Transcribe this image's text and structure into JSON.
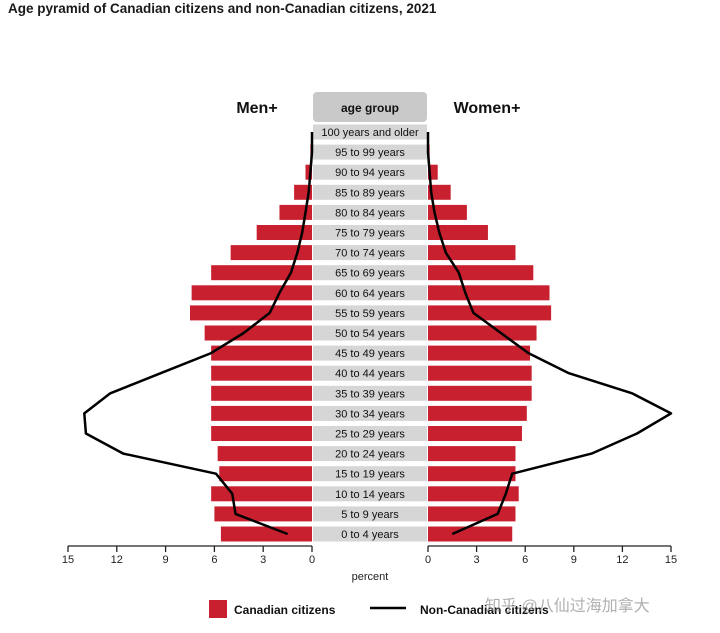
{
  "title": "Age pyramid of Canadian citizens and non-Canadian citizens, 2021",
  "watermark": "知乎 @八仙过海加拿大",
  "chart_data": {
    "type": "bar",
    "orientation": "horizontal-pyramid",
    "left_label": "Men+",
    "right_label": "Women+",
    "center_header": "age group",
    "xlabel": "percent",
    "xlim": [
      0,
      15
    ],
    "ticks": [
      "15",
      "12",
      "9",
      "6",
      "3",
      "0"
    ],
    "categories": [
      "0 to 4 years",
      "5 to 9 years",
      "10 to 14 years",
      "15 to 19 years",
      "20 to 24 years",
      "25 to 29 years",
      "30 to 34 years",
      "35 to 39 years",
      "40 to 44 years",
      "45 to 49 years",
      "50 to 54 years",
      "55 to 59 years",
      "60 to 64 years",
      "65 to 69 years",
      "70 to 74 years",
      "75 to 79 years",
      "80 to 84 years",
      "85 to 89 years",
      "90 to 94 years",
      "95 to 99 years",
      "100 years and older"
    ],
    "series": [
      {
        "name": "Canadian citizens",
        "style": "bar",
        "color": "#c8202f",
        "men": [
          5.6,
          6.0,
          6.2,
          5.7,
          5.8,
          6.2,
          6.2,
          6.2,
          6.2,
          6.2,
          6.6,
          7.5,
          7.4,
          6.2,
          5.0,
          3.4,
          2.0,
          1.1,
          0.4,
          0.1,
          0.0
        ],
        "women": [
          5.2,
          5.4,
          5.6,
          5.4,
          5.4,
          5.8,
          6.1,
          6.4,
          6.4,
          6.3,
          6.7,
          7.6,
          7.5,
          6.5,
          5.4,
          3.7,
          2.4,
          1.4,
          0.6,
          0.1,
          0.0
        ]
      },
      {
        "name": "Non-Canadian citizens",
        "style": "line",
        "color": "#000000",
        "men": [
          1.5,
          4.7,
          4.9,
          5.9,
          11.6,
          13.9,
          14.0,
          12.4,
          9.3,
          6.2,
          4.2,
          2.6,
          2.0,
          1.3,
          0.9,
          0.6,
          0.4,
          0.2,
          0.1,
          0.0,
          0.0
        ],
        "women": [
          1.5,
          4.3,
          4.8,
          5.2,
          10.1,
          12.9,
          15.0,
          12.6,
          8.7,
          6.2,
          4.5,
          2.8,
          2.3,
          1.9,
          1.1,
          0.7,
          0.4,
          0.2,
          0.1,
          0.0,
          0.0
        ]
      }
    ],
    "legend_position": "bottom",
    "grid": false
  }
}
